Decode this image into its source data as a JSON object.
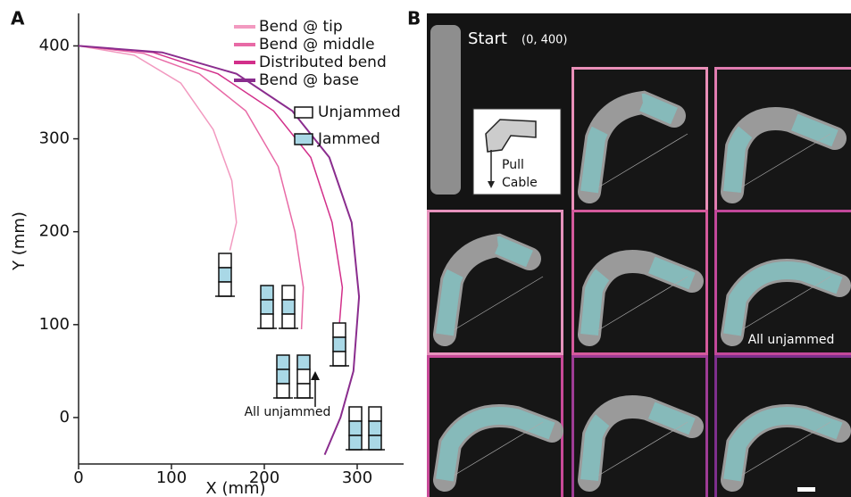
{
  "chart_data": {
    "type": "line",
    "panel_label": "A",
    "xlabel": "X (mm)",
    "ylabel": "Y (mm)",
    "xlim": [
      0,
      350
    ],
    "ylim": [
      -50,
      435
    ],
    "xticks": [
      0,
      100,
      200,
      300
    ],
    "yticks": [
      0,
      100,
      200,
      300,
      400
    ],
    "series": [
      {
        "name": "Bend @ tip",
        "color": "#f29ac0",
        "x": [
          0,
          60,
          110,
          145,
          165,
          170,
          163
        ],
        "values": [
          400,
          390,
          360,
          310,
          255,
          210,
          180
        ]
      },
      {
        "name": "Bend @ middle",
        "color": "#e86aa6",
        "x": [
          0,
          70,
          130,
          180,
          215,
          233,
          242,
          240
        ],
        "values": [
          400,
          392,
          370,
          330,
          270,
          200,
          140,
          95
        ]
      },
      {
        "name": "Distributed bend",
        "color": "#d22f8a",
        "x": [
          0,
          80,
          150,
          210,
          250,
          273,
          284,
          280,
          275
        ],
        "values": [
          400,
          393,
          370,
          330,
          280,
          210,
          140,
          90,
          60
        ]
      },
      {
        "name": "Bend @ base",
        "color": "#8a2d8e",
        "x": [
          0,
          90,
          170,
          230,
          270,
          294,
          302,
          296,
          282,
          265
        ],
        "values": [
          400,
          393,
          370,
          330,
          280,
          210,
          130,
          50,
          0,
          -40
        ]
      }
    ],
    "patch_legend": [
      "Unjammed",
      "Jammed"
    ],
    "annotation": "All unjammed"
  },
  "panel_b": {
    "label": "B",
    "start": "Start",
    "start_coords": "(0, 400)",
    "inset": [
      "Pull",
      "Cable"
    ],
    "photo_note": "All unjammed"
  }
}
